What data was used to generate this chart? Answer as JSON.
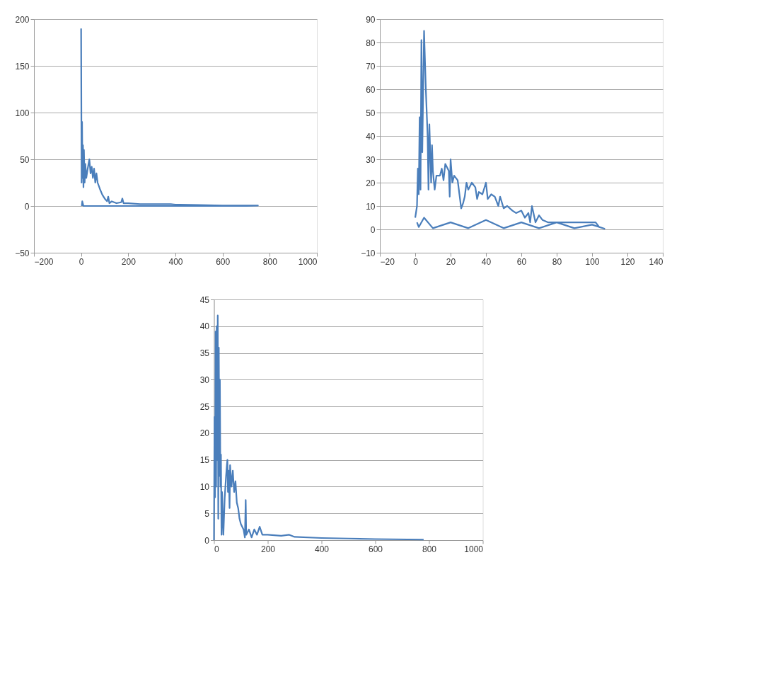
{
  "chart_data": [
    {
      "type": "line",
      "color": "#4a7ebb",
      "grid": "y",
      "xlim": [
        -200,
        1000
      ],
      "xticks": [
        -200,
        0,
        200,
        400,
        600,
        800,
        1000
      ],
      "ylim": [
        -50,
        200
      ],
      "yticks": [
        -50,
        0,
        50,
        100,
        150,
        200
      ],
      "x": [
        0,
        2,
        4,
        6,
        8,
        10,
        12,
        15,
        18,
        22,
        28,
        35,
        40,
        45,
        50,
        55,
        60,
        65,
        70,
        80,
        90,
        100,
        110,
        115,
        120,
        130,
        150,
        170,
        175,
        180,
        200,
        250,
        300,
        380,
        400,
        500,
        600,
        750,
        700,
        400,
        100,
        10,
        5,
        3
      ],
      "values": [
        190,
        25,
        90,
        30,
        65,
        20,
        60,
        25,
        45,
        30,
        40,
        50,
        35,
        42,
        30,
        40,
        25,
        35,
        25,
        18,
        12,
        8,
        5,
        10,
        3,
        5,
        3,
        4,
        8,
        3,
        3,
        2,
        2,
        2,
        1.5,
        1,
        0.5,
        0.5,
        0,
        0,
        0,
        0,
        5,
        0
      ]
    },
    {
      "type": "line",
      "color": "#4a7ebb",
      "grid": "y",
      "xlim": [
        -20,
        140
      ],
      "xticks": [
        -20,
        0,
        20,
        40,
        60,
        80,
        100,
        120,
        140
      ],
      "ylim": [
        -10,
        90
      ],
      "yticks": [
        -10,
        0,
        10,
        20,
        30,
        40,
        50,
        60,
        70,
        80,
        90
      ],
      "x": [
        0,
        1,
        1.5,
        2,
        2.5,
        3,
        3.5,
        4,
        4.5,
        5,
        6,
        7,
        7.5,
        8,
        9,
        9.5,
        10,
        11,
        12,
        14,
        15,
        16,
        17,
        19,
        19.5,
        20,
        21,
        22,
        24,
        25,
        26,
        27,
        28,
        29,
        30,
        32,
        34,
        35,
        36,
        38,
        40,
        41,
        43,
        45,
        47,
        48,
        50,
        52,
        55,
        57,
        60,
        62,
        64,
        65,
        66,
        68,
        70,
        72,
        75,
        80,
        90,
        100,
        102,
        104,
        107,
        100,
        90,
        80,
        70,
        60,
        50,
        40,
        30,
        20,
        10,
        5,
        2,
        1
      ],
      "values": [
        5,
        10,
        26,
        15,
        48,
        17,
        81,
        33,
        60,
        85,
        60,
        40,
        17,
        45,
        20,
        36,
        25,
        17,
        23,
        23,
        26,
        21,
        28,
        25,
        14,
        30,
        20,
        23,
        21,
        15,
        9,
        11,
        14,
        20,
        17,
        20,
        18,
        13,
        16,
        15,
        20,
        13,
        15,
        14,
        10,
        14,
        9,
        10,
        8,
        7,
        8,
        5,
        7,
        3,
        10,
        3,
        6,
        4,
        3,
        3,
        3,
        3,
        3,
        1,
        0.3,
        2,
        0.5,
        3,
        0.5,
        3,
        0.5,
        4,
        0.5,
        3,
        0.5,
        5,
        1,
        3
      ]
    },
    {
      "type": "line",
      "color": "#4a7ebb",
      "grid": "y",
      "xlim": [
        0,
        1000
      ],
      "xticks": [
        0,
        200,
        400,
        600,
        800,
        1000
      ],
      "ylim": [
        0,
        45
      ],
      "yticks": [
        0,
        5,
        10,
        15,
        20,
        25,
        30,
        35,
        40,
        45
      ],
      "x": [
        0,
        2,
        4,
        6,
        8,
        10,
        12,
        14,
        16,
        18,
        20,
        22,
        24,
        26,
        28,
        30,
        35,
        40,
        45,
        48,
        50,
        52,
        55,
        58,
        60,
        65,
        70,
        75,
        80,
        85,
        90,
        95,
        100,
        110,
        115,
        118,
        120,
        130,
        140,
        150,
        160,
        170,
        180,
        200,
        250,
        280,
        300,
        400,
        500,
        600,
        780
      ],
      "values": [
        0,
        23,
        8,
        39,
        10,
        40,
        15,
        42,
        4,
        36,
        12,
        30,
        10,
        16,
        1,
        9,
        1,
        8,
        12,
        14,
        15,
        9,
        13,
        6,
        14,
        10,
        13,
        9,
        11,
        7,
        6,
        4,
        3,
        2,
        0.5,
        7.5,
        1,
        2,
        0.5,
        2,
        1,
        2.5,
        1,
        1,
        0.8,
        1,
        0.6,
        0.4,
        0.3,
        0.2,
        0.1
      ]
    }
  ]
}
